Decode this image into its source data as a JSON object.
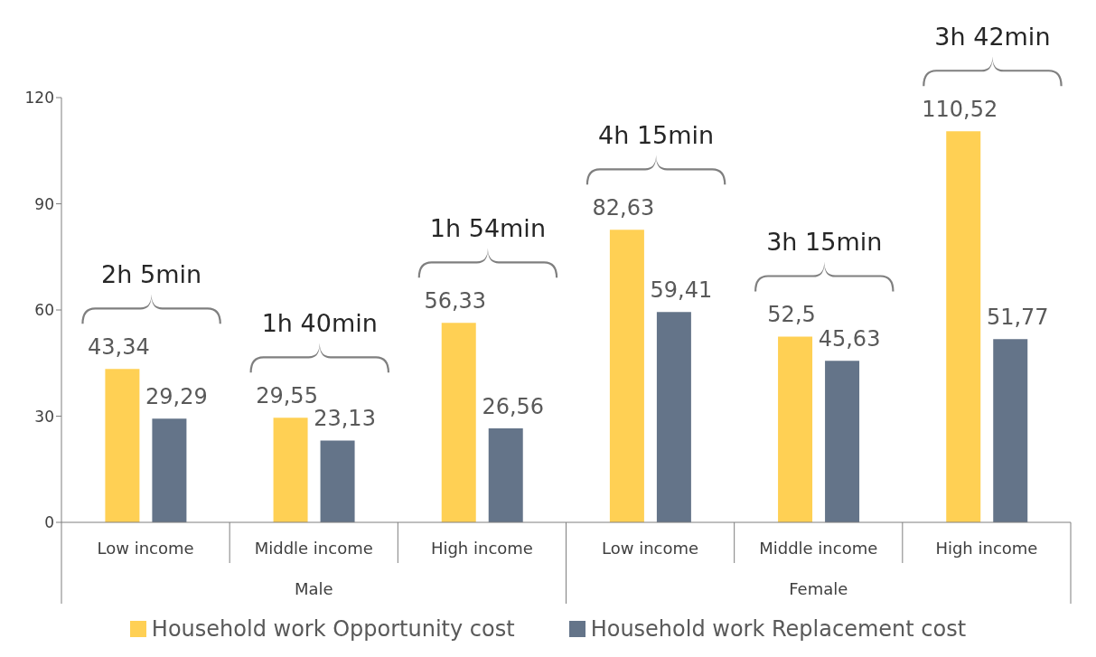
{
  "chart_data": {
    "type": "bar",
    "categories": [
      "Low income",
      "Middle income",
      "High income",
      "Low income",
      "Middle income",
      "High income"
    ],
    "series": [
      {
        "name": "Household work Opportunity cost",
        "color": "#ffd054",
        "values": [
          43.34,
          29.55,
          56.33,
          82.63,
          52.5,
          110.52
        ],
        "value_labels": [
          "43,34",
          "29,55",
          "56,33",
          "82,63",
          "52,5",
          "110,52"
        ]
      },
      {
        "name": "Household work Replacement cost",
        "color": "#647489",
        "values": [
          29.29,
          23.13,
          26.56,
          59.41,
          45.63,
          51.77
        ],
        "value_labels": [
          "29,29",
          "23,13",
          "26,56",
          "59,41",
          "45,63",
          "51,77"
        ]
      }
    ],
    "annotations": [
      "2h 5min",
      "1h 40min",
      "1h 54min",
      "4h 15min",
      "3h 15min",
      "3h 42min",
      "Male",
      "Female"
    ],
    "ylim": [
      0,
      120
    ],
    "yticks": [
      0,
      30,
      60,
      90,
      120
    ],
    "legend": "bottom"
  }
}
